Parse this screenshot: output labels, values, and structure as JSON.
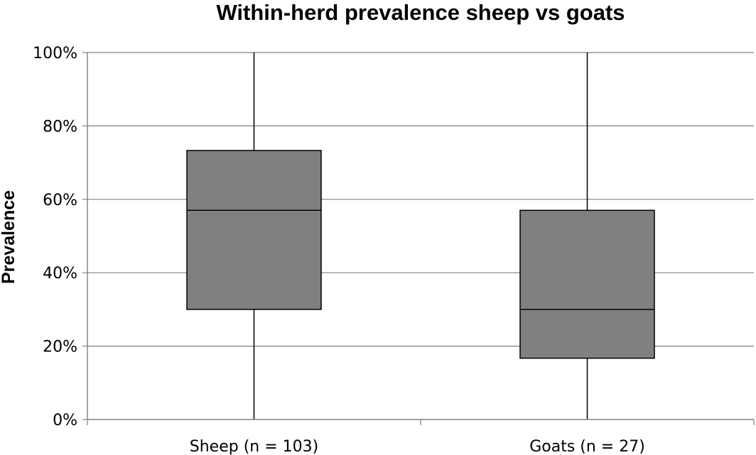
{
  "chart_data": {
    "type": "box",
    "title": "Within-herd prevalence sheep vs goats",
    "xlabel": "",
    "ylabel": "Prevalence",
    "ylim": [
      0,
      100
    ],
    "y_unit": "%",
    "y_ticks": [
      0,
      20,
      40,
      60,
      80,
      100
    ],
    "y_tick_labels": [
      "0%",
      "20%",
      "40%",
      "60%",
      "80%",
      "100%"
    ],
    "grid": "horizontal",
    "categories": [
      "Sheep (n = 103)",
      "Goats (n = 27)"
    ],
    "boxes": [
      {
        "category": "Sheep (n = 103)",
        "min": 0,
        "q1": 30,
        "median": 57,
        "q3": 73.3,
        "max": 100
      },
      {
        "category": "Goats (n = 27)",
        "min": 0,
        "q1": 16.7,
        "median": 30,
        "q3": 57,
        "max": 100
      }
    ],
    "colors": {
      "box_fill": "#808080",
      "line": "#000000",
      "grid": "#808080"
    }
  }
}
